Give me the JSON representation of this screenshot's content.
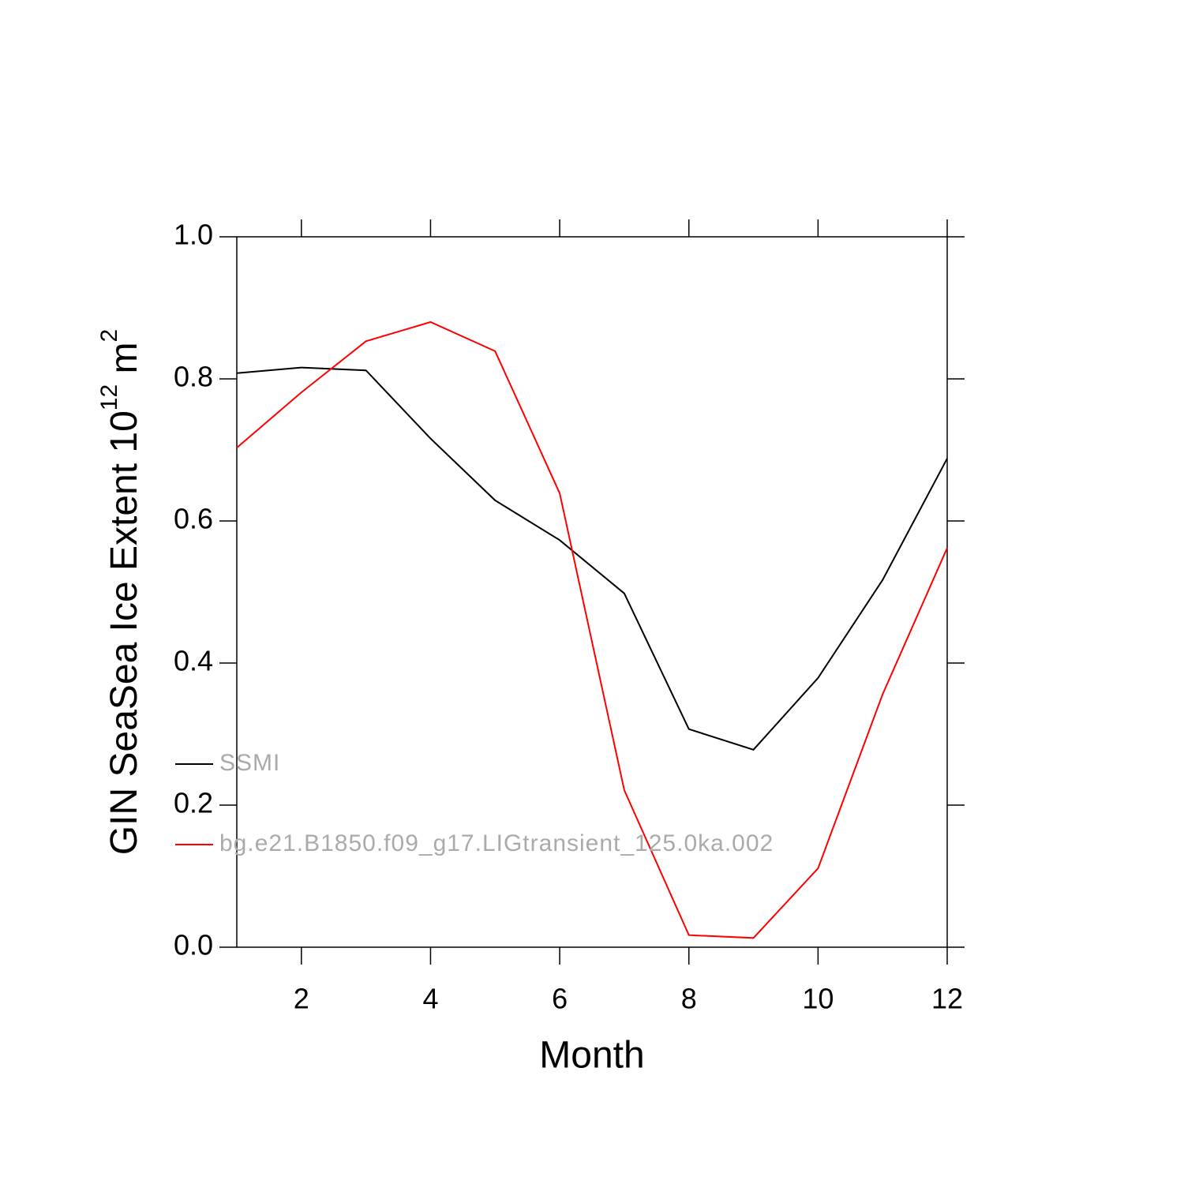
{
  "chart_data": {
    "type": "line",
    "xlabel": "Month",
    "ylabel": {
      "text": "GIN SeaSea Ice Extent 10",
      "exp": "12",
      "unit": " m",
      "unit_exp": "2"
    },
    "x": [
      1,
      2,
      3,
      4,
      5,
      6,
      7,
      8,
      9,
      10,
      11,
      12
    ],
    "series": [
      {
        "name": "SSMI",
        "color": "#000000",
        "values": [
          0.808,
          0.816,
          0.812,
          0.716,
          0.629,
          0.573,
          0.498,
          0.307,
          0.278,
          0.379,
          0.517,
          0.688
        ]
      },
      {
        "name": "bg.e21.B1850.f09_g17.LIGtransient_125.0ka.002",
        "color": "#ff0000",
        "values": [
          0.703,
          0.781,
          0.853,
          0.88,
          0.839,
          0.639,
          0.221,
          0.017,
          0.013,
          0.111,
          0.356,
          0.562
        ]
      }
    ],
    "xlim": [
      1,
      12
    ],
    "xticks": [
      2,
      4,
      6,
      8,
      10,
      12
    ],
    "ylim": [
      0,
      1
    ],
    "yticks": [
      {
        "value": 0,
        "label": "0.0"
      },
      0.2,
      0.4,
      0.6,
      0.8,
      {
        "value": 1,
        "label": "1.0"
      }
    ],
    "grid": false
  }
}
